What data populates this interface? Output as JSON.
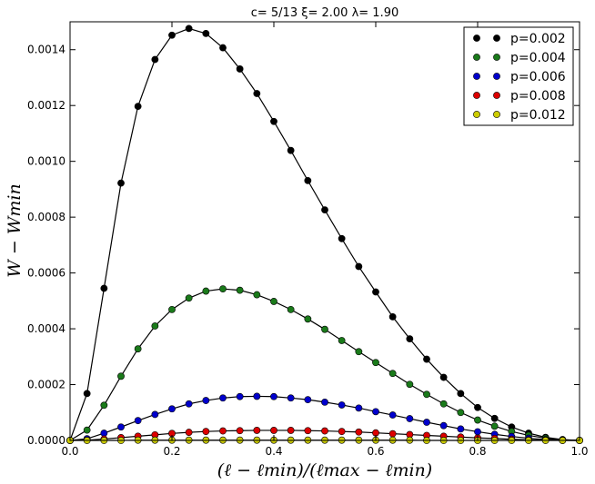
{
  "chart_data": {
    "type": "line",
    "title": "c= 5/13   ξ= 2.00   λ= 1.90",
    "xlabel": "(ℓ − ℓmin)/(ℓmax − ℓmin)",
    "ylabel": "W − Wmin",
    "xlim": [
      0.0,
      1.0
    ],
    "ylim": [
      0.0,
      0.0015
    ],
    "xticks": [
      "0.0",
      "0.2",
      "0.4",
      "0.6",
      "0.8",
      "1.0"
    ],
    "yticks": [
      "0.0000",
      "0.0002",
      "0.0004",
      "0.0006",
      "0.0008",
      "0.0010",
      "0.0012",
      "0.0014"
    ],
    "grid": false,
    "legend_position": "top-right",
    "x": [
      0.0,
      0.0333,
      0.0667,
      0.1,
      0.1333,
      0.1667,
      0.2,
      0.2333,
      0.2667,
      0.3,
      0.3333,
      0.3667,
      0.4,
      0.4333,
      0.4667,
      0.5,
      0.5333,
      0.5667,
      0.6,
      0.6333,
      0.6667,
      0.7,
      0.7333,
      0.7667,
      0.8,
      0.8333,
      0.8667,
      0.9,
      0.9333,
      0.9667,
      1.0
    ],
    "series": [
      {
        "name": "p=0.002",
        "color": "#000000",
        "values": [
          0.0,
          0.000168,
          0.000545,
          0.000922,
          0.001197,
          0.001365,
          0.001452,
          0.001476,
          0.001458,
          0.001407,
          0.001331,
          0.001243,
          0.001143,
          0.001039,
          0.000931,
          0.000826,
          0.000723,
          0.000623,
          0.000532,
          0.000443,
          0.000364,
          0.000291,
          0.000226,
          0.000168,
          0.000118,
          7.9e-05,
          4.8e-05,
          2.6e-05,
          1.1e-05,
          3e-06,
          0.0
        ]
      },
      {
        "name": "p=0.004",
        "color": "#1a7a1a",
        "values": [
          0.0,
          3.7e-05,
          0.000126,
          0.00023,
          0.000328,
          0.00041,
          0.000469,
          0.00051,
          0.000535,
          0.000543,
          0.000538,
          0.000522,
          0.000498,
          0.000469,
          0.000435,
          0.000398,
          0.000358,
          0.000318,
          0.000279,
          0.00024,
          0.000201,
          0.000165,
          0.000131,
          0.0001,
          7.3e-05,
          5.1e-05,
          3.2e-05,
          1.8e-05,
          8e-06,
          2e-06,
          0.0
        ]
      },
      {
        "name": "p=0.006",
        "color": "#0000cc",
        "values": [
          0.0,
          6e-06,
          2.6e-05,
          4.8e-05,
          7.1e-05,
          9.3e-05,
          0.000113,
          0.000131,
          0.000143,
          0.000152,
          0.000157,
          0.000158,
          0.000157,
          0.000152,
          0.000146,
          0.000137,
          0.000127,
          0.000116,
          0.000103,
          9.1e-05,
          7.8e-05,
          6.5e-05,
          5.3e-05,
          4.1e-05,
          3.1e-05,
          2.2e-05,
          1.4e-05,
          8e-06,
          3e-06,
          1e-06,
          0.0
        ]
      },
      {
        "name": "p=0.008",
        "color": "#dd0000",
        "values": [
          0.0,
          1e-06,
          5e-06,
          1e-05,
          1.5e-05,
          2e-05,
          2.5e-05,
          2.9e-05,
          3.2e-05,
          3.4e-05,
          3.5e-05,
          3.6e-05,
          3.6e-05,
          3.6e-05,
          3.5e-05,
          3.4e-05,
          3.2e-05,
          3e-05,
          2.7e-05,
          2.4e-05,
          2.1e-05,
          1.8e-05,
          1.5e-05,
          1.2e-05,
          9e-06,
          7e-06,
          4e-06,
          2e-06,
          1e-06,
          0.0,
          0.0
        ]
      },
      {
        "name": "p=0.012",
        "color": "#cccc00",
        "values": [
          0.0,
          0.0,
          0.0,
          0.0,
          1e-06,
          1e-06,
          1e-06,
          1e-06,
          1e-06,
          1e-06,
          1e-06,
          1e-06,
          1e-06,
          1e-06,
          1e-06,
          1e-06,
          1e-06,
          1e-06,
          1e-06,
          1e-06,
          1e-06,
          0.0,
          0.0,
          0.0,
          0.0,
          0.0,
          0.0,
          0.0,
          0.0,
          0.0,
          0.0
        ]
      }
    ]
  }
}
